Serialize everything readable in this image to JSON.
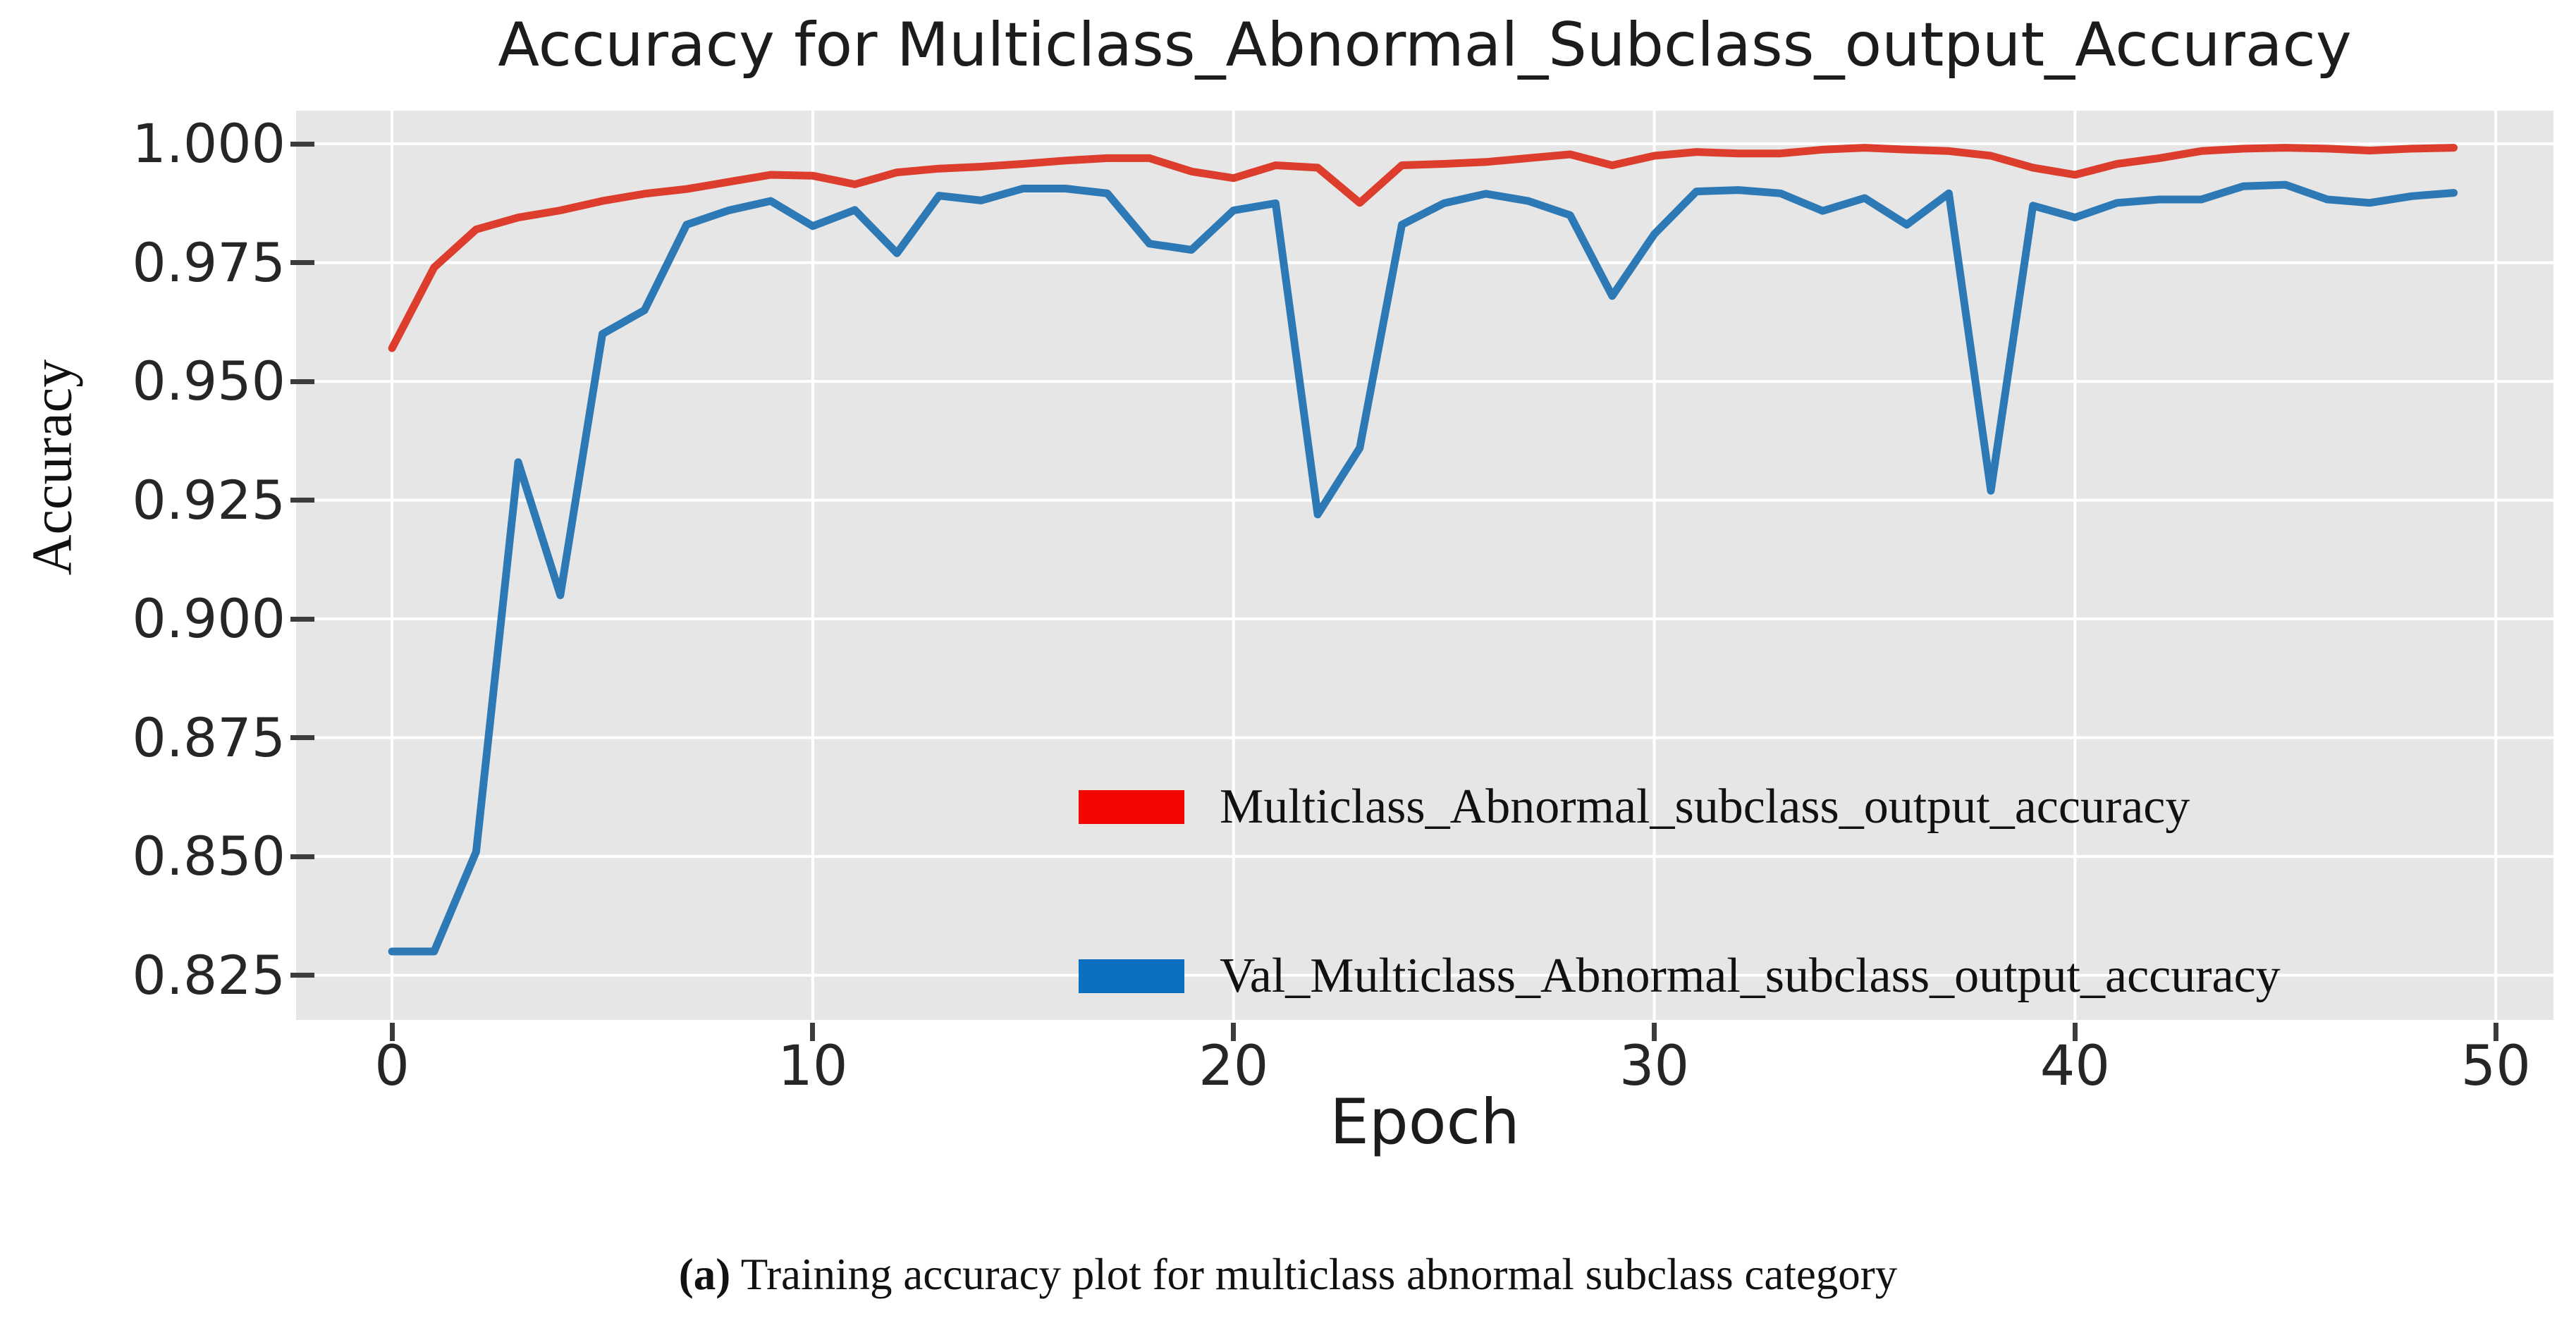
{
  "title": "Accuracy for Multiclass_Abnormal_Subclass_output_Accuracy",
  "axes": {
    "x_label": "Epoch",
    "y_label": "Accuracy",
    "x_tick_labels": [
      "0",
      "10",
      "20",
      "30",
      "40",
      "50"
    ],
    "y_tick_labels": [
      "1.000",
      "0.975",
      "0.950",
      "0.925",
      "0.900",
      "0.875",
      "0.850",
      "0.825"
    ]
  },
  "legend": {
    "items": [
      {
        "label": "Multiclass_Abnormal_subclass_output_accuracy",
        "swatch_color": "#f20800"
      },
      {
        "label": "Val_Multiclass_Abnormal_subclass_output_accuracy",
        "swatch_color": "#0c70c2"
      }
    ]
  },
  "caption": {
    "prefix": "(a)",
    "text": " Training accuracy plot for multiclass abnormal subclass category"
  },
  "colors": {
    "plot_background": "#e6e6e6",
    "grid": "#ffffff",
    "train_line": "#dc3d2c",
    "val_line": "#2d79b5",
    "tick": "#3c3c3c",
    "text": "#1c1c1c"
  },
  "chart_data": {
    "type": "line",
    "title": "Accuracy for Multiclass_Abnormal_Subclass_output_Accuracy",
    "xlabel": "Epoch",
    "ylabel": "Accuracy",
    "grid": true,
    "legend_position": "lower right",
    "xlim": [
      -2.28,
      51.37
    ],
    "ylim": [
      0.8156,
      1.007
    ],
    "x_tick_values": [
      0,
      10,
      20,
      30,
      40,
      50
    ],
    "y_tick_values": [
      1.0,
      0.975,
      0.95,
      0.925,
      0.9,
      0.875,
      0.85,
      0.825
    ],
    "x": [
      0,
      1,
      2,
      3,
      4,
      5,
      6,
      7,
      8,
      9,
      10,
      11,
      12,
      13,
      14,
      15,
      16,
      17,
      18,
      19,
      20,
      21,
      22,
      23,
      24,
      25,
      26,
      27,
      28,
      29,
      30,
      31,
      32,
      33,
      34,
      35,
      36,
      37,
      38,
      39,
      40,
      41,
      42,
      43,
      44,
      45,
      46,
      47,
      48,
      49
    ],
    "series": [
      {
        "name": "Multiclass_Abnormal_subclass_output_accuracy",
        "color": "#dc3d2c",
        "values": [
          0.957,
          0.974,
          0.982,
          0.9845,
          0.986,
          0.988,
          0.9895,
          0.9905,
          0.992,
          0.9935,
          0.9933,
          0.9915,
          0.994,
          0.9948,
          0.9952,
          0.9958,
          0.9965,
          0.997,
          0.997,
          0.9942,
          0.9928,
          0.9955,
          0.995,
          0.9876,
          0.9955,
          0.9958,
          0.9962,
          0.997,
          0.9978,
          0.9955,
          0.9975,
          0.9983,
          0.998,
          0.998,
          0.9988,
          0.9992,
          0.9988,
          0.9985,
          0.9975,
          0.995,
          0.9935,
          0.9958,
          0.997,
          0.9985,
          0.999,
          0.9992,
          0.999,
          0.9986,
          0.999,
          0.9992
        ]
      },
      {
        "name": "Val_Multiclass_Abnormal_subclass_output_accuracy",
        "color": "#2d79b5",
        "values": [
          0.83,
          0.83,
          0.851,
          0.933,
          0.905,
          0.96,
          0.965,
          0.983,
          0.986,
          0.988,
          0.9827,
          0.9861,
          0.977,
          0.9891,
          0.9881,
          0.9906,
          0.9906,
          0.9896,
          0.979,
          0.9777,
          0.986,
          0.9875,
          0.922,
          0.936,
          0.983,
          0.9875,
          0.9895,
          0.988,
          0.985,
          0.968,
          0.981,
          0.99,
          0.9903,
          0.9896,
          0.9859,
          0.9886,
          0.983,
          0.9896,
          0.927,
          0.987,
          0.9845,
          0.9876,
          0.9883,
          0.9883,
          0.9911,
          0.9914,
          0.9883,
          0.9876,
          0.989,
          0.9897
        ]
      }
    ]
  }
}
